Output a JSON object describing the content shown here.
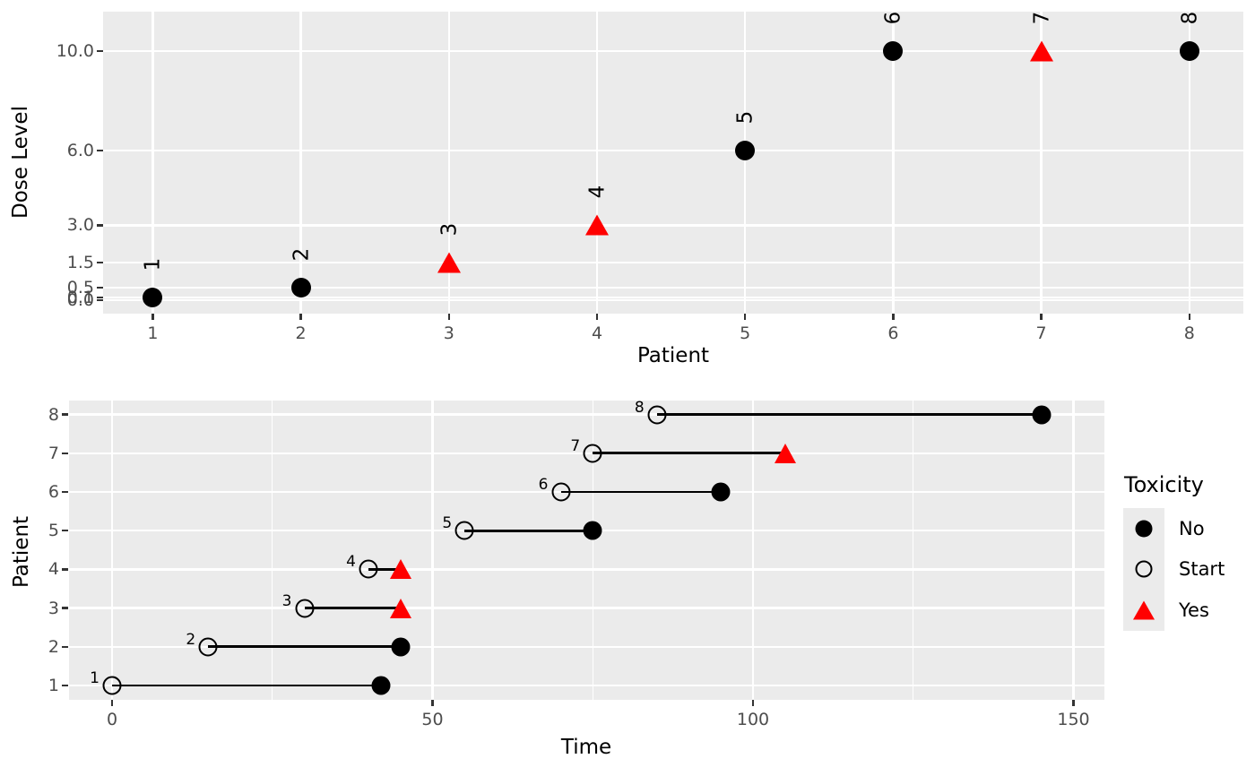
{
  "chart_data": [
    {
      "type": "scatter",
      "title": "",
      "xlabel": "Patient",
      "ylabel": "Dose Level",
      "patients": [
        {
          "id": 1,
          "dose": 0.1,
          "toxicity": false,
          "label": "1"
        },
        {
          "id": 2,
          "dose": 0.5,
          "toxicity": false,
          "label": "2"
        },
        {
          "id": 3,
          "dose": 1.5,
          "toxicity": true,
          "label": "3"
        },
        {
          "id": 4,
          "dose": 3.0,
          "toxicity": true,
          "label": "4"
        },
        {
          "id": 5,
          "dose": 6.0,
          "toxicity": false,
          "label": "5"
        },
        {
          "id": 6,
          "dose": 10.0,
          "toxicity": false,
          "label": "6"
        },
        {
          "id": 7,
          "dose": 10.0,
          "toxicity": true,
          "label": "7"
        },
        {
          "id": 8,
          "dose": 10.0,
          "toxicity": false,
          "label": "8"
        }
      ],
      "x_ticks": [
        1,
        2,
        3,
        4,
        5,
        6,
        7,
        8
      ],
      "x_tick_labels": [
        "1",
        "2",
        "3",
        "4",
        "5",
        "6",
        "7",
        "8"
      ],
      "y_ticks": [
        0.0,
        0.1,
        0.5,
        1.5,
        3.0,
        6.0,
        10.0
      ],
      "y_tick_labels": [
        "0.0",
        "0.1",
        "0.5",
        "1.5",
        "3.0",
        "6.0",
        "10.0"
      ],
      "xlim": [
        0.67,
        8.37
      ],
      "ylim": [
        -0.55,
        11.58
      ],
      "grid": "major-only",
      "marker_no_toxicity": "filled-black-circle",
      "marker_toxicity": "red-triangle"
    },
    {
      "type": "segment",
      "title": "",
      "xlabel": "Time",
      "ylabel": "Patient",
      "patients": [
        {
          "id": 1,
          "start": 0,
          "end": 42,
          "toxicity": false,
          "label": "1"
        },
        {
          "id": 2,
          "start": 15,
          "end": 45,
          "toxicity": false,
          "label": "2"
        },
        {
          "id": 3,
          "start": 30,
          "end": 45,
          "toxicity": true,
          "label": "3"
        },
        {
          "id": 4,
          "start": 40,
          "end": 45,
          "toxicity": true,
          "label": "4"
        },
        {
          "id": 5,
          "start": 55,
          "end": 75,
          "toxicity": false,
          "label": "5"
        },
        {
          "id": 6,
          "start": 70,
          "end": 95,
          "toxicity": false,
          "label": "6"
        },
        {
          "id": 7,
          "start": 75,
          "end": 105,
          "toxicity": true,
          "label": "7"
        },
        {
          "id": 8,
          "start": 85,
          "end": 145,
          "toxicity": false,
          "label": "8"
        }
      ],
      "x_ticks": [
        0,
        50,
        100,
        150
      ],
      "x_tick_labels": [
        "0",
        "50",
        "100",
        "150"
      ],
      "x_minor_ticks": [
        25,
        75,
        125
      ],
      "y_ticks": [
        1,
        2,
        3,
        4,
        5,
        6,
        7,
        8
      ],
      "y_tick_labels": [
        "1",
        "2",
        "3",
        "4",
        "5",
        "6",
        "7",
        "8"
      ],
      "xlim": [
        -6.7,
        154.9
      ],
      "ylim": [
        0.64,
        8.37
      ],
      "grid": "major-and-x-minor",
      "legend": {
        "title": "Toxicity",
        "items": [
          {
            "label": "No",
            "marker": "filled-black-circle"
          },
          {
            "label": "Start",
            "marker": "open-circle"
          },
          {
            "label": "Yes",
            "marker": "red-triangle"
          }
        ]
      }
    }
  ],
  "colors": {
    "panel_background": "#EBEBEB",
    "gridline": "#FFFFFF",
    "tick_text": "#4D4D4D",
    "marker_black": "#000000",
    "toxicity_red": "#FF0000",
    "figure_background": "#FFFFFF"
  }
}
